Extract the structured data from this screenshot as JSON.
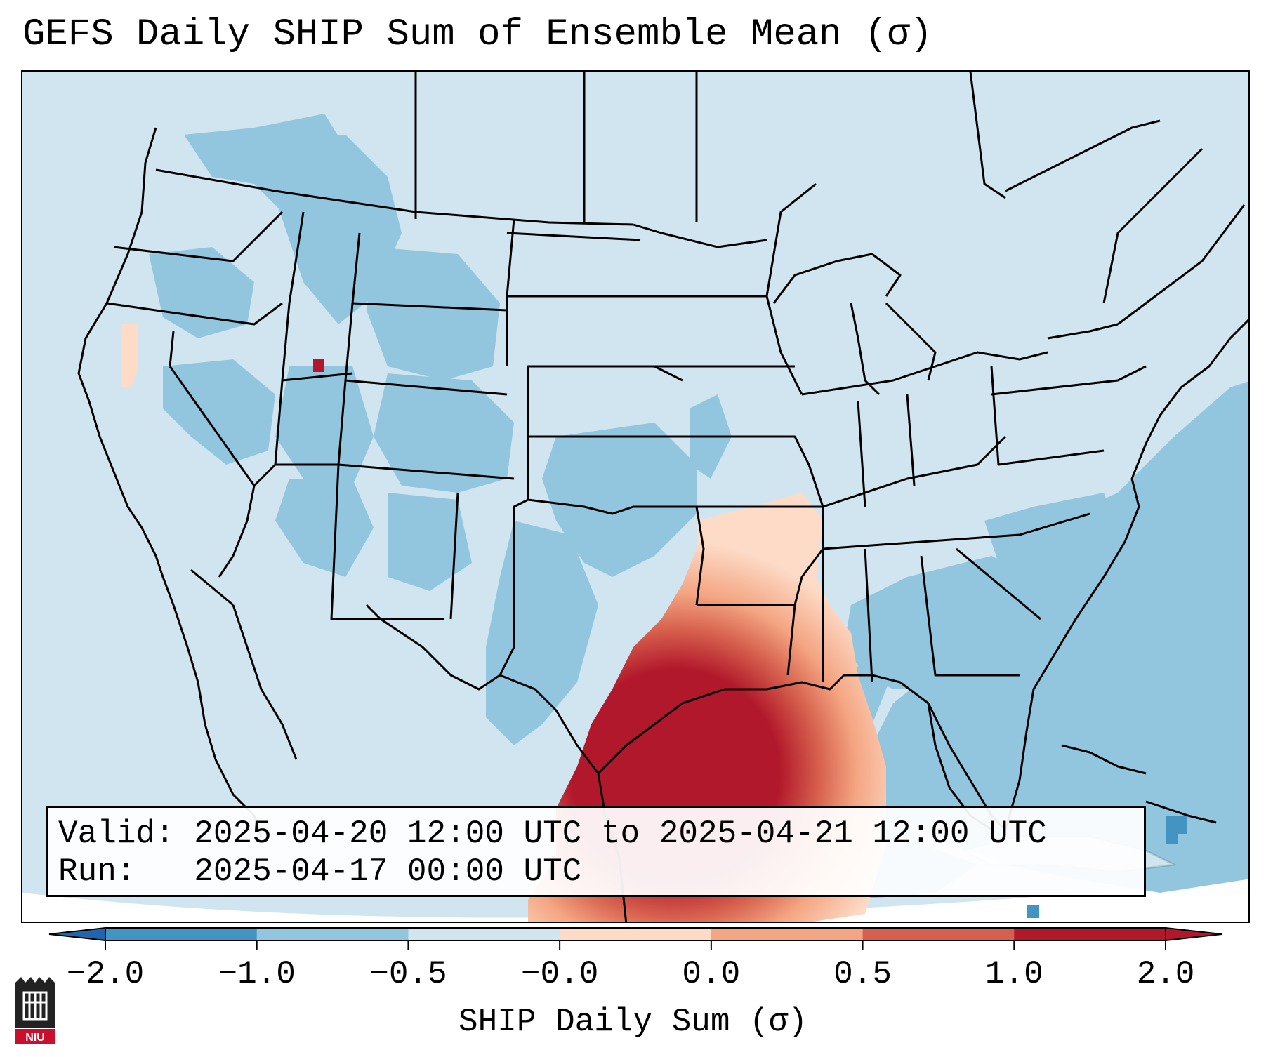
{
  "title": "GEFS Daily SHIP Sum of Ensemble Mean (σ)",
  "info_box": {
    "valid_label": "Valid:",
    "valid_value": "2025-04-20 12:00 UTC to 2025-04-21 12:00 UTC",
    "run_label": "Run:",
    "run_value": "2025-04-17 00:00 UTC"
  },
  "colorbar": {
    "label": "SHIP Daily Sum (σ)",
    "ticks": [
      "−2.0",
      "−1.0",
      "−0.5",
      "−0.0",
      "0.0",
      "0.5",
      "1.0",
      "2.0"
    ],
    "colors": [
      "#4393c3",
      "#92c5de",
      "#d1e5f0",
      "#fddbc7",
      "#f4a582",
      "#d6604d",
      "#b2182b"
    ],
    "extend": "both"
  },
  "map": {
    "projection": "Lambert Conformal (CONUS)",
    "background_color": "#d1e5f0",
    "field": "SHIP daily sum of ensemble mean",
    "max_region": "Southeast Texas / western Louisiana"
  },
  "logo": {
    "text": "NIU",
    "color": "#c8102e"
  }
}
